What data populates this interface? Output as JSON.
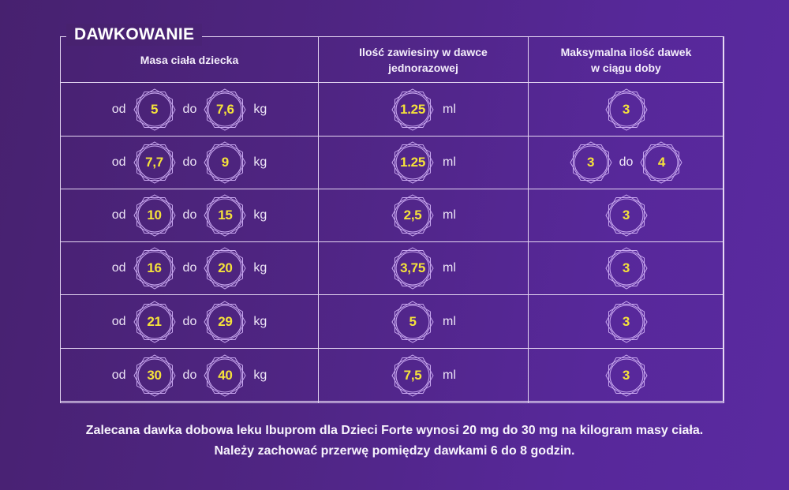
{
  "title": "DAWKOWANIE",
  "headers": {
    "body_mass": "Masa ciała dziecka",
    "dose_line1": "Ilość zawiesiny w dawce",
    "dose_line2": "jednorazowej",
    "max_line1": "Maksymalna ilość dawek",
    "max_line2": "w ciągu doby"
  },
  "labels": {
    "from": "od",
    "to": "do",
    "kg": "kg",
    "ml": "ml"
  },
  "rows": [
    {
      "mass_from": "5",
      "mass_to": "7,6",
      "dose": "1.25",
      "max_from": "3",
      "max_to": null
    },
    {
      "mass_from": "7,7",
      "mass_to": "9",
      "dose": "1.25",
      "max_from": "3",
      "max_to": "4"
    },
    {
      "mass_from": "10",
      "mass_to": "15",
      "dose": "2,5",
      "max_from": "3",
      "max_to": null
    },
    {
      "mass_from": "16",
      "mass_to": "20",
      "dose": "3,75",
      "max_from": "3",
      "max_to": null
    },
    {
      "mass_from": "21",
      "mass_to": "29",
      "dose": "5",
      "max_from": "3",
      "max_to": null
    },
    {
      "mass_from": "30",
      "mass_to": "40",
      "dose": "7,5",
      "max_from": "3",
      "max_to": null
    }
  ],
  "footer": {
    "line1": "Zalecana dawka dobowa leku Ibuprom dla Dzieci Forte wynosi 20 mg do 30 mg na kilogram masy ciała.",
    "line2": "Należy zachować przerwę pomiędzy dawkami 6 do 8 godzin."
  },
  "colors": {
    "background": "#4f2583",
    "accent_number": "#f5e23a",
    "line": "#e4d6f2",
    "badge_outline": "#c9a8f0"
  }
}
